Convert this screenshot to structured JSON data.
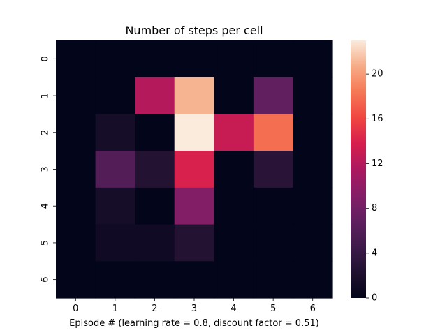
{
  "chart_data": {
    "type": "heatmap",
    "title": "Number of steps per cell",
    "xlabel": "Episode # (learning rate = 0.8, discount factor = 0.51)",
    "ylabel": "",
    "x_tick_labels": [
      "0",
      "1",
      "2",
      "3",
      "4",
      "5",
      "6"
    ],
    "y_tick_labels": [
      "0",
      "1",
      "2",
      "3",
      "4",
      "5",
      "6"
    ],
    "values": [
      [
        0,
        0,
        0,
        0,
        0,
        0,
        0
      ],
      [
        0,
        0,
        12,
        21,
        0,
        7,
        0
      ],
      [
        0,
        1.5,
        0,
        23,
        13,
        18,
        0
      ],
      [
        0,
        6,
        2.5,
        14,
        0,
        3,
        0
      ],
      [
        0,
        1.5,
        0,
        9,
        0,
        0,
        0
      ],
      [
        0,
        1,
        1,
        2.5,
        0,
        0,
        0
      ],
      [
        0,
        0,
        0,
        0,
        0,
        0,
        0
      ]
    ],
    "colorbar": {
      "vmin": 0,
      "vmax": 23,
      "ticks": [
        "0",
        "4",
        "8",
        "12",
        "16",
        "20"
      ],
      "colormap": "rocket"
    },
    "grid": false
  }
}
